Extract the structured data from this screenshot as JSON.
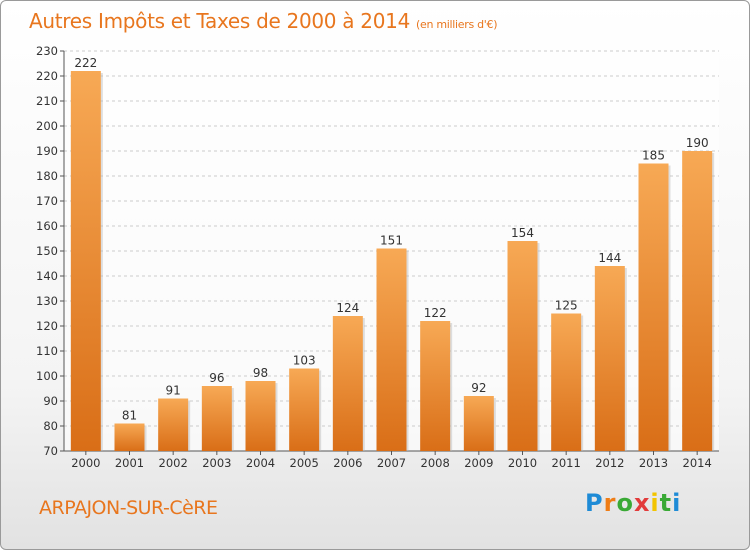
{
  "header": {
    "title": "Autres Impôts et Taxes de 2000 à 2014",
    "subtitle": "(en milliers d'€)"
  },
  "footer": {
    "commune": "ARPAJON-SUR-CèRE",
    "logo_text": "Proxiti"
  },
  "colors": {
    "accent": "#e8761e",
    "bar_light": "#f6a552",
    "bar_dark": "#d9711a"
  },
  "chart_data": {
    "type": "bar",
    "title": "Autres Impôts et Taxes de 2000 à 2014",
    "subtitle": "(en milliers d'€)",
    "xlabel": "",
    "ylabel": "",
    "categories": [
      "2000",
      "2001",
      "2002",
      "2003",
      "2004",
      "2005",
      "2006",
      "2007",
      "2008",
      "2009",
      "2010",
      "2011",
      "2012",
      "2013",
      "2014"
    ],
    "values": [
      222,
      81,
      91,
      96,
      98,
      103,
      124,
      151,
      122,
      92,
      154,
      125,
      144,
      185,
      190
    ],
    "ylim": [
      70,
      230
    ],
    "yticks": [
      70,
      80,
      90,
      100,
      110,
      120,
      130,
      140,
      150,
      160,
      170,
      180,
      190,
      200,
      210,
      220,
      230
    ],
    "grid": true,
    "legend": "none"
  }
}
